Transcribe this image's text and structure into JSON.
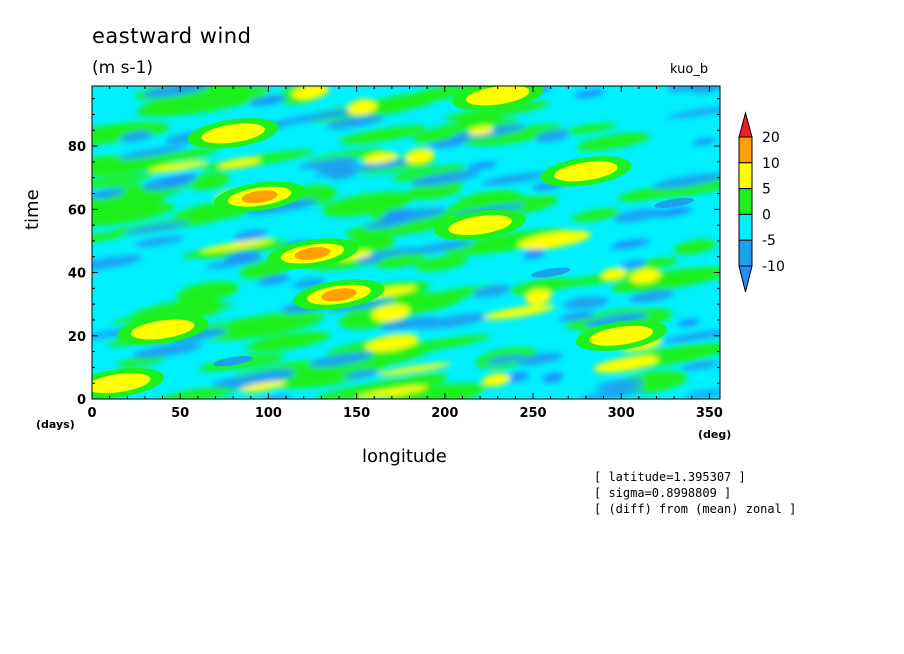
{
  "chart_data": {
    "type": "heatmap",
    "title": "eastward wind",
    "units": "(m s-1)",
    "experiment": "kuo_b",
    "xlabel": "longitude",
    "ylabel": "time",
    "x_unit": "(deg)",
    "y_unit": "(days)",
    "xlim": [
      0,
      356
    ],
    "ylim": [
      0,
      99
    ],
    "x_ticks": [
      "0",
      "50",
      "100",
      "150",
      "200",
      "250",
      "300",
      "350"
    ],
    "y_ticks": [
      "0",
      "20",
      "40",
      "60",
      "80"
    ],
    "colorbar": {
      "levels": [
        "-10",
        "-5",
        "0",
        "5",
        "10",
        "20"
      ],
      "colors": [
        "#1e8fff",
        "#1ea0f0",
        "#00f0ff",
        "#1ef01e",
        "#ffff00",
        "#ffa000",
        "#f01e1e"
      ]
    },
    "notes": [
      "[ latitude=1.395307 ]",
      "[ sigma=0.8998809 ]",
      "[ (diff) from (mean) zonal ]"
    ],
    "features": [
      {
        "lon": 125,
        "day": 46,
        "value": 12
      },
      {
        "lon": 140,
        "day": 33,
        "value": 13
      },
      {
        "lon": 95,
        "day": 64,
        "value": 11
      },
      {
        "lon": 80,
        "day": 84,
        "value": 7
      },
      {
        "lon": 220,
        "day": 55,
        "value": 6
      },
      {
        "lon": 280,
        "day": 72,
        "value": 6
      },
      {
        "lon": 40,
        "day": 22,
        "value": 7
      },
      {
        "lon": 300,
        "day": 20,
        "value": 6
      },
      {
        "lon": 15,
        "day": 5,
        "value": 6
      },
      {
        "lon": 230,
        "day": 96,
        "value": 7
      },
      {
        "lon": 80,
        "day": 12,
        "value": -7
      },
      {
        "lon": 260,
        "day": 40,
        "value": -6
      },
      {
        "lon": 330,
        "day": 62,
        "value": -6
      }
    ]
  }
}
